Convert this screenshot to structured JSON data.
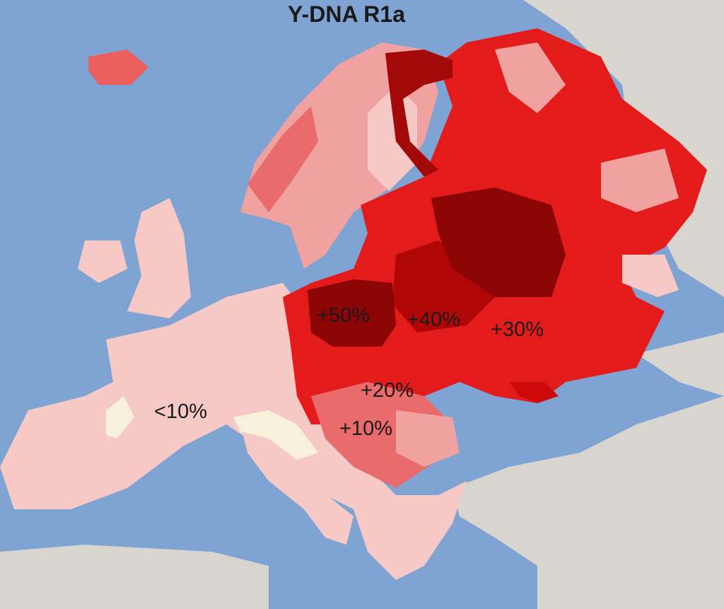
{
  "title": "Y-DNA R1a",
  "colors": {
    "sea": "#7fa3d2",
    "non_europe_land": "#d8d5cf",
    "below_10": "#f6c9c6",
    "light_pink": "#f0a2a0",
    "red_20": "#ea6b6b",
    "red_30": "#e41b1b",
    "red_40": "#cc0a0a",
    "red_50": "#8c0505",
    "alpine_white": "#f7f1dc"
  },
  "labels": {
    "p50": "+50%",
    "p40": "+40%",
    "p30": "+30%",
    "p20": "+20%",
    "p10": "+10%",
    "lt10": "<10%"
  }
}
